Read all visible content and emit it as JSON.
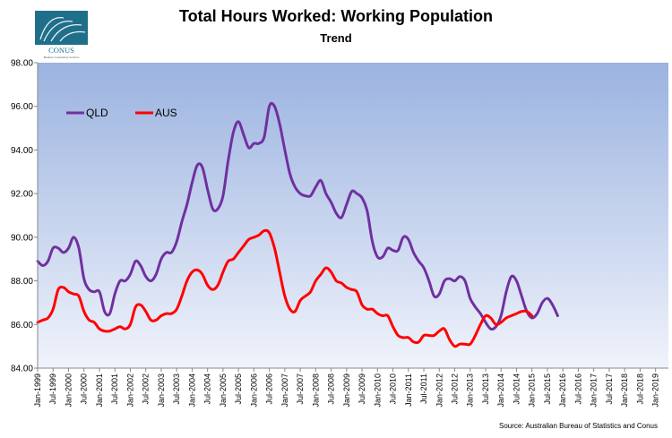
{
  "logo": {
    "text": "CONUS",
    "tagline": "Business Consultancy Services",
    "color": "#1f6f8b"
  },
  "title": "Total Hours Worked: Working Population",
  "subtitle": "Trend",
  "source": "Source: Australian Bureau of Statistics and Conus",
  "chart_data": {
    "type": "line",
    "title": "Total Hours Worked: Working Population",
    "subtitle": "Trend",
    "ylim": [
      84.0,
      98.0
    ],
    "yticks": [
      "84.00",
      "86.00",
      "88.00",
      "90.00",
      "92.00",
      "94.00",
      "96.00",
      "98.00"
    ],
    "x_start": "1999-01",
    "x_end": "2019-06",
    "xticks": [
      "Jan-1999",
      "Jul-1999",
      "Jan-2000",
      "Jul-2000",
      "Jan-2001",
      "Jul-2001",
      "Jan-2002",
      "Jul-2002",
      "Jan-2003",
      "Jul-2003",
      "Jan-2004",
      "Jul-2004",
      "Jan-2005",
      "Jul-2005",
      "Jan-2006",
      "Jul-2006",
      "Jan-2007",
      "Jul-2007",
      "Jan-2008",
      "Jul-2008",
      "Jan-2009",
      "Jul-2009",
      "Jan-2010",
      "Jul-2010",
      "Jan-2011",
      "Jul-2011",
      "Jan-2012",
      "Jul-2012",
      "Jan-2013",
      "Jul-2013",
      "Jan-2014",
      "Jul-2014",
      "Jan-2015",
      "Jul-2015",
      "Jan-2016",
      "Jul-2016",
      "Jan-2017",
      "Jul-2017",
      "Jan-2018",
      "Jul-2018",
      "Jan-2019"
    ],
    "legend_position": "top-left",
    "background_gradient": [
      "#9bb3e0",
      "#f0f3fb"
    ],
    "series": [
      {
        "name": "QLD",
        "color": "#7030a0",
        "points": [
          [
            "1999-01",
            88.9
          ],
          [
            "1999-03",
            88.7
          ],
          [
            "1999-05",
            88.9
          ],
          [
            "1999-07",
            89.5
          ],
          [
            "1999-09",
            89.5
          ],
          [
            "1999-11",
            89.3
          ],
          [
            "2000-01",
            89.5
          ],
          [
            "2000-03",
            90.0
          ],
          [
            "2000-05",
            89.5
          ],
          [
            "2000-07",
            88.1
          ],
          [
            "2000-09",
            87.6
          ],
          [
            "2000-11",
            87.5
          ],
          [
            "2001-01",
            87.5
          ],
          [
            "2001-03",
            86.6
          ],
          [
            "2001-05",
            86.5
          ],
          [
            "2001-07",
            87.4
          ],
          [
            "2001-09",
            88.0
          ],
          [
            "2001-11",
            88.0
          ],
          [
            "2002-01",
            88.3
          ],
          [
            "2002-03",
            88.9
          ],
          [
            "2002-05",
            88.7
          ],
          [
            "2002-07",
            88.2
          ],
          [
            "2002-09",
            88.0
          ],
          [
            "2002-11",
            88.3
          ],
          [
            "2003-01",
            89.0
          ],
          [
            "2003-03",
            89.3
          ],
          [
            "2003-05",
            89.3
          ],
          [
            "2003-07",
            89.8
          ],
          [
            "2003-09",
            90.7
          ],
          [
            "2003-11",
            91.5
          ],
          [
            "2004-01",
            92.5
          ],
          [
            "2004-03",
            93.3
          ],
          [
            "2004-05",
            93.2
          ],
          [
            "2004-07",
            92.2
          ],
          [
            "2004-09",
            91.3
          ],
          [
            "2004-11",
            91.3
          ],
          [
            "2005-01",
            91.9
          ],
          [
            "2005-03",
            93.5
          ],
          [
            "2005-05",
            94.8
          ],
          [
            "2005-07",
            95.3
          ],
          [
            "2005-09",
            94.7
          ],
          [
            "2005-11",
            94.1
          ],
          [
            "2006-01",
            94.3
          ],
          [
            "2006-03",
            94.3
          ],
          [
            "2006-05",
            94.6
          ],
          [
            "2006-07",
            96.0
          ],
          [
            "2006-09",
            96.0
          ],
          [
            "2006-11",
            95.2
          ],
          [
            "2007-01",
            94.0
          ],
          [
            "2007-03",
            92.9
          ],
          [
            "2007-05",
            92.3
          ],
          [
            "2007-07",
            92.0
          ],
          [
            "2007-09",
            91.9
          ],
          [
            "2007-11",
            91.9
          ],
          [
            "2008-01",
            92.3
          ],
          [
            "2008-03",
            92.6
          ],
          [
            "2008-05",
            92.0
          ],
          [
            "2008-07",
            91.6
          ],
          [
            "2008-09",
            91.1
          ],
          [
            "2008-11",
            90.9
          ],
          [
            "2009-01",
            91.5
          ],
          [
            "2009-03",
            92.1
          ],
          [
            "2009-05",
            92.0
          ],
          [
            "2009-07",
            91.8
          ],
          [
            "2009-09",
            91.2
          ],
          [
            "2009-11",
            89.8
          ],
          [
            "2010-01",
            89.1
          ],
          [
            "2010-03",
            89.1
          ],
          [
            "2010-05",
            89.5
          ],
          [
            "2010-07",
            89.4
          ],
          [
            "2010-09",
            89.4
          ],
          [
            "2010-11",
            90.0
          ],
          [
            "2011-01",
            89.9
          ],
          [
            "2011-03",
            89.3
          ],
          [
            "2011-05",
            88.9
          ],
          [
            "2011-07",
            88.6
          ],
          [
            "2011-09",
            88.0
          ],
          [
            "2011-11",
            87.3
          ],
          [
            "2012-01",
            87.4
          ],
          [
            "2012-03",
            88.0
          ],
          [
            "2012-05",
            88.1
          ],
          [
            "2012-07",
            88.0
          ],
          [
            "2012-09",
            88.2
          ],
          [
            "2012-11",
            88.0
          ],
          [
            "2013-01",
            87.2
          ],
          [
            "2013-03",
            86.8
          ],
          [
            "2013-05",
            86.5
          ],
          [
            "2013-07",
            86.1
          ],
          [
            "2013-09",
            85.8
          ],
          [
            "2013-11",
            85.9
          ],
          [
            "2014-01",
            86.4
          ],
          [
            "2014-03",
            87.5
          ],
          [
            "2014-05",
            88.2
          ],
          [
            "2014-07",
            88.0
          ],
          [
            "2014-09",
            87.3
          ],
          [
            "2014-11",
            86.6
          ],
          [
            "2015-01",
            86.3
          ],
          [
            "2015-03",
            86.5
          ],
          [
            "2015-05",
            87.0
          ],
          [
            "2015-07",
            87.2
          ],
          [
            "2015-09",
            86.9
          ],
          [
            "2015-11",
            86.4
          ]
        ]
      },
      {
        "name": "AUS",
        "color": "#ff0000",
        "points": [
          [
            "1999-01",
            86.1
          ],
          [
            "1999-03",
            86.2
          ],
          [
            "1999-05",
            86.3
          ],
          [
            "1999-07",
            86.7
          ],
          [
            "1999-09",
            87.6
          ],
          [
            "1999-11",
            87.7
          ],
          [
            "2000-01",
            87.5
          ],
          [
            "2000-03",
            87.4
          ],
          [
            "2000-05",
            87.3
          ],
          [
            "2000-07",
            86.6
          ],
          [
            "2000-09",
            86.2
          ],
          [
            "2000-11",
            86.1
          ],
          [
            "2001-01",
            85.8
          ],
          [
            "2001-03",
            85.7
          ],
          [
            "2001-05",
            85.7
          ],
          [
            "2001-07",
            85.8
          ],
          [
            "2001-09",
            85.9
          ],
          [
            "2001-11",
            85.8
          ],
          [
            "2002-01",
            86.0
          ],
          [
            "2002-03",
            86.8
          ],
          [
            "2002-05",
            86.9
          ],
          [
            "2002-07",
            86.6
          ],
          [
            "2002-09",
            86.2
          ],
          [
            "2002-11",
            86.2
          ],
          [
            "2003-01",
            86.4
          ],
          [
            "2003-03",
            86.5
          ],
          [
            "2003-05",
            86.5
          ],
          [
            "2003-07",
            86.7
          ],
          [
            "2003-09",
            87.3
          ],
          [
            "2003-11",
            88.0
          ],
          [
            "2004-01",
            88.4
          ],
          [
            "2004-03",
            88.5
          ],
          [
            "2004-05",
            88.3
          ],
          [
            "2004-07",
            87.8
          ],
          [
            "2004-09",
            87.6
          ],
          [
            "2004-11",
            87.8
          ],
          [
            "2005-01",
            88.4
          ],
          [
            "2005-03",
            88.9
          ],
          [
            "2005-05",
            89.0
          ],
          [
            "2005-07",
            89.3
          ],
          [
            "2005-09",
            89.6
          ],
          [
            "2005-11",
            89.9
          ],
          [
            "2006-01",
            90.0
          ],
          [
            "2006-03",
            90.1
          ],
          [
            "2006-05",
            90.3
          ],
          [
            "2006-07",
            90.2
          ],
          [
            "2006-09",
            89.5
          ],
          [
            "2006-11",
            88.4
          ],
          [
            "2007-01",
            87.3
          ],
          [
            "2007-03",
            86.7
          ],
          [
            "2007-05",
            86.6
          ],
          [
            "2007-07",
            87.1
          ],
          [
            "2007-09",
            87.3
          ],
          [
            "2007-11",
            87.5
          ],
          [
            "2008-01",
            88.0
          ],
          [
            "2008-03",
            88.3
          ],
          [
            "2008-05",
            88.6
          ],
          [
            "2008-07",
            88.4
          ],
          [
            "2008-09",
            88.0
          ],
          [
            "2008-11",
            87.9
          ],
          [
            "2009-01",
            87.7
          ],
          [
            "2009-03",
            87.6
          ],
          [
            "2009-05",
            87.5
          ],
          [
            "2009-07",
            86.9
          ],
          [
            "2009-09",
            86.7
          ],
          [
            "2009-11",
            86.7
          ],
          [
            "2010-01",
            86.5
          ],
          [
            "2010-03",
            86.4
          ],
          [
            "2010-05",
            86.4
          ],
          [
            "2010-07",
            85.9
          ],
          [
            "2010-09",
            85.5
          ],
          [
            "2010-11",
            85.4
          ],
          [
            "2011-01",
            85.4
          ],
          [
            "2011-03",
            85.2
          ],
          [
            "2011-05",
            85.2
          ],
          [
            "2011-07",
            85.5
          ],
          [
            "2011-09",
            85.5
          ],
          [
            "2011-11",
            85.5
          ],
          [
            "2012-01",
            85.7
          ],
          [
            "2012-03",
            85.8
          ],
          [
            "2012-05",
            85.3
          ],
          [
            "2012-07",
            85.0
          ],
          [
            "2012-09",
            85.1
          ],
          [
            "2012-11",
            85.1
          ],
          [
            "2013-01",
            85.1
          ],
          [
            "2013-03",
            85.5
          ],
          [
            "2013-05",
            86.0
          ],
          [
            "2013-07",
            86.4
          ],
          [
            "2013-09",
            86.3
          ],
          [
            "2013-11",
            86.0
          ],
          [
            "2014-01",
            86.1
          ],
          [
            "2014-03",
            86.3
          ],
          [
            "2014-05",
            86.4
          ],
          [
            "2014-07",
            86.5
          ],
          [
            "2014-09",
            86.6
          ],
          [
            "2014-11",
            86.6
          ],
          [
            "2015-01",
            86.4
          ]
        ]
      }
    ]
  }
}
